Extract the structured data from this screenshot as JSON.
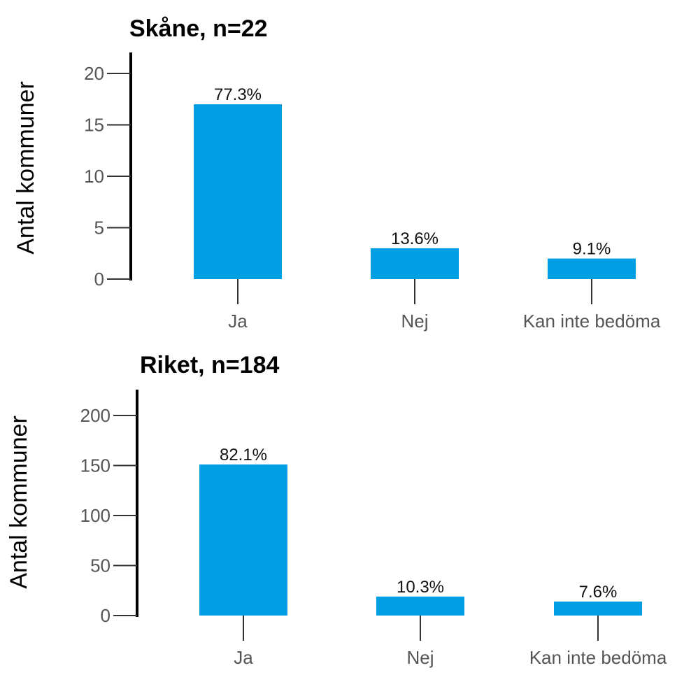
{
  "chart_data": [
    {
      "type": "bar",
      "title": "Skåne, n=22",
      "ylabel": "Antal kommuner",
      "categories": [
        "Ja",
        "Nej",
        "Kan inte bedöma"
      ],
      "values": [
        17,
        3,
        2
      ],
      "data_labels": [
        "77.3%",
        "13.6%",
        "9.1%"
      ],
      "yticks": [
        0,
        5,
        10,
        15,
        20
      ],
      "ylim": [
        0,
        20
      ],
      "grid": false,
      "bar_color": "#009fe3"
    },
    {
      "type": "bar",
      "title": "Riket, n=184",
      "ylabel": "Antal kommuner",
      "categories": [
        "Ja",
        "Nej",
        "Kan inte bedöma"
      ],
      "values": [
        151,
        19,
        14
      ],
      "data_labels": [
        "82.1%",
        "10.3%",
        "7.6%"
      ],
      "yticks": [
        0,
        50,
        100,
        150,
        200
      ],
      "ylim": [
        0,
        200
      ],
      "grid": false,
      "bar_color": "#009fe3"
    }
  ]
}
